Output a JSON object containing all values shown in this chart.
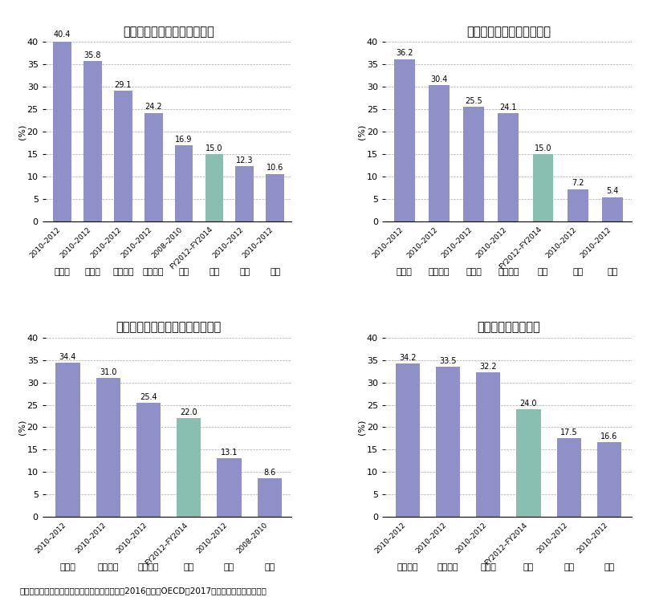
{
  "charts": [
    {
      "title": "プロダクト・イノベーション",
      "categories": [
        "カナダ",
        "ドイツ",
        "イタリア",
        "フランス",
        "米国",
        "日本",
        "英国",
        "韓国"
      ],
      "periods": [
        "2010–2012",
        "2010–2012",
        "2010–2012",
        "2010–2012",
        "2008–2010",
        "FY2012–FY2014",
        "2010–2012",
        "2010–2012"
      ],
      "values": [
        40.4,
        35.8,
        29.1,
        24.2,
        16.9,
        15.0,
        12.3,
        10.6
      ],
      "japan_index": 5
    },
    {
      "title": "プロセス・イノベーション",
      "categories": [
        "カナダ",
        "イタリア",
        "ドイツ",
        "フランス",
        "日本",
        "英国",
        "韓国"
      ],
      "periods": [
        "2010–2012",
        "2010–2012",
        "2010–2012",
        "2010–2012",
        "FY2012–FY2014",
        "2010–2012",
        "2010–2012"
      ],
      "values": [
        36.2,
        30.4,
        25.5,
        24.1,
        15.0,
        7.2,
        5.4
      ],
      "japan_index": 4
    },
    {
      "title": "マーケティング・イノベーション",
      "categories": [
        "ドイツ",
        "イタリア",
        "フランス",
        "日本",
        "韓国",
        "英国"
      ],
      "periods": [
        "2010–2012",
        "2010–2012",
        "2010–2012",
        "FY2012–FY2014",
        "2010–2012",
        "2008–2010"
      ],
      "values": [
        34.4,
        31.0,
        25.4,
        22.0,
        13.1,
        8.6
      ],
      "japan_index": 3
    },
    {
      "title": "組織イノベーション",
      "categories": [
        "フランス",
        "イタリア",
        "ドイツ",
        "日本",
        "英国",
        "韓国"
      ],
      "periods": [
        "2010–2012",
        "2010–2012",
        "2010–2012",
        "FY2012–FY2014",
        "2010–2012",
        "2010–2012"
      ],
      "values": [
        34.2,
        33.5,
        32.2,
        24.0,
        17.5,
        16.6
      ],
      "japan_index": 3
    }
  ],
  "bar_color_normal": "#9090c8",
  "bar_color_japan": "#88bfb0",
  "ylim": [
    0,
    40
  ],
  "yticks": [
    0,
    5,
    10,
    15,
    20,
    25,
    30,
    35,
    40
  ],
  "ylabel": "(%)",
  "footer": "資料：文部科学省科学技術・学術政策研究所（2016）及びOECD（2017）から経済産業省作成。",
  "title_fontsize": 10.5,
  "tick_fontsize": 8,
  "label_fontsize": 8,
  "value_fontsize": 7,
  "footer_fontsize": 7.5,
  "period_fontsize": 6.5
}
